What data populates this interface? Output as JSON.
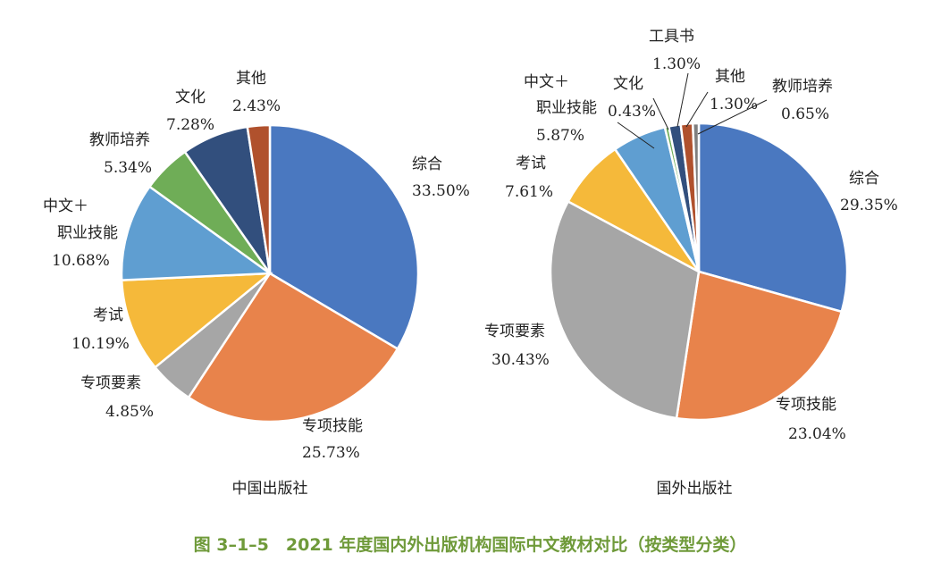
{
  "figure_caption": "图 3–1–5　2021 年度国内外出版机构国际中文教材对比（按类型分类）",
  "chart_data": [
    {
      "type": "pie",
      "subtitle": "中国出版社",
      "slices": [
        {
          "name": "综合",
          "value": 33.5,
          "label": "33.50%",
          "color": "#4a78c0"
        },
        {
          "name": "专项技能",
          "value": 25.73,
          "label": "25.73%",
          "color": "#e8834b"
        },
        {
          "name": "专项要素",
          "value": 4.85,
          "label": "4.85%",
          "color": "#a6a6a6"
        },
        {
          "name": "考试",
          "value": 10.19,
          "label": "10.19%",
          "color": "#f5b93a"
        },
        {
          "name": "中文＋职业技能",
          "value": 10.68,
          "label": "10.68%",
          "color": "#5f9ed1"
        },
        {
          "name": "教师培养",
          "value": 5.34,
          "label": "5.34%",
          "color": "#6fad57"
        },
        {
          "name": "文化",
          "value": 7.28,
          "label": "7.28%",
          "color": "#324f7d"
        },
        {
          "name": "其他",
          "value": 2.43,
          "label": "2.43%",
          "color": "#b0512d"
        }
      ]
    },
    {
      "type": "pie",
      "subtitle": "国外出版社",
      "slices": [
        {
          "name": "综合",
          "value": 29.35,
          "label": "29.35%",
          "color": "#4a78c0"
        },
        {
          "name": "专项技能",
          "value": 23.04,
          "label": "23.04%",
          "color": "#e8834b"
        },
        {
          "name": "专项要素",
          "value": 30.43,
          "label": "30.43%",
          "color": "#a6a6a6"
        },
        {
          "name": "考试",
          "value": 7.61,
          "label": "7.61%",
          "color": "#f5b93a"
        },
        {
          "name": "中文＋职业技能",
          "value": 5.87,
          "label": "5.87%",
          "color": "#5f9ed1"
        },
        {
          "name": "文化",
          "value": 0.43,
          "label": "0.43%",
          "color": "#6fad57"
        },
        {
          "name": "工具书",
          "value": 1.3,
          "label": "1.30%",
          "color": "#324f7d"
        },
        {
          "name": "其他",
          "value": 1.3,
          "label": "1.30%",
          "color": "#b0512d"
        },
        {
          "name": "教师培养",
          "value": 0.65,
          "label": "0.65%",
          "color": "#7f7f7f"
        }
      ]
    }
  ]
}
